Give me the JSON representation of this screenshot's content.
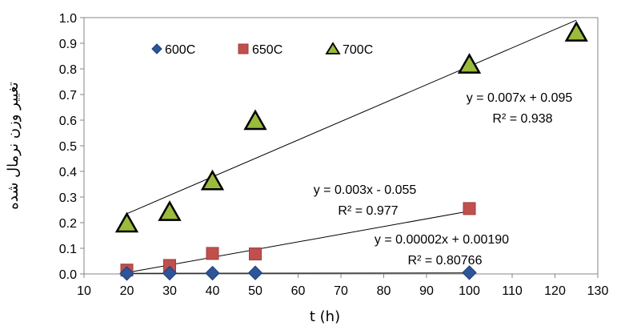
{
  "chart_data": {
    "type": "scatter",
    "title": "",
    "xlabel": "t (h)",
    "ylabel": "تغییر وزن نرمال شده",
    "xlim": [
      10,
      130
    ],
    "ylim": [
      0,
      1.0
    ],
    "xticks": [
      10,
      20,
      30,
      40,
      50,
      60,
      70,
      80,
      90,
      100,
      110,
      120,
      130
    ],
    "yticks": [
      0.0,
      0.1,
      0.2,
      0.3,
      0.4,
      0.5,
      0.6,
      0.7,
      0.8,
      0.9,
      1.0
    ],
    "grid": false,
    "legend_position": "top-left",
    "series": [
      {
        "name": "600C",
        "marker": "diamond",
        "color": "#2E5597",
        "points": [
          [
            20,
            0.002
          ],
          [
            30,
            0.003
          ],
          [
            40,
            0.003
          ],
          [
            50,
            0.004
          ],
          [
            100,
            0.005
          ]
        ],
        "trendline": {
          "x_range": [
            20,
            100
          ],
          "y_range": [
            0.0023,
            0.0039
          ],
          "equation": "y = 0.00002x + 0.00190",
          "r_squared": "R² = 0.80766"
        }
      },
      {
        "name": "650C",
        "marker": "square",
        "color": "#C0504D",
        "points": [
          [
            20,
            0.015
          ],
          [
            30,
            0.033
          ],
          [
            40,
            0.08
          ],
          [
            50,
            0.078
          ],
          [
            100,
            0.255
          ]
        ],
        "trendline": {
          "x_range": [
            20,
            100
          ],
          "y_range": [
            0.005,
            0.245
          ],
          "equation": "y = 0.003x - 0.055",
          "r_squared": "R² = 0.977"
        }
      },
      {
        "name": "700C",
        "marker": "triangle",
        "color": "#000000",
        "fill": "#9BBB3C",
        "points": [
          [
            20,
            0.2
          ],
          [
            30,
            0.245
          ],
          [
            40,
            0.365
          ],
          [
            50,
            0.6
          ],
          [
            100,
            0.82
          ],
          [
            125,
            0.945
          ]
        ],
        "trendline": {
          "x_range": [
            20,
            125
          ],
          "y_range": [
            0.235,
            0.99
          ],
          "equation": "y = 0.007x + 0.095",
          "r_squared": "R² = 0.938"
        }
      }
    ]
  }
}
